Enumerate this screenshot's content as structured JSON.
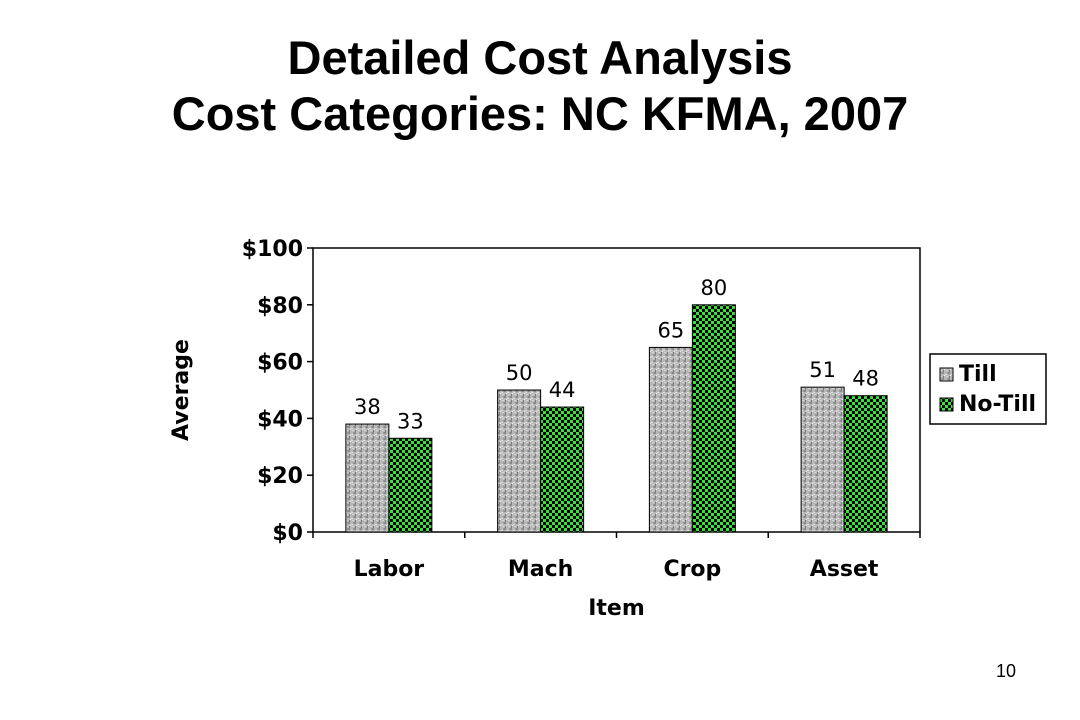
{
  "slide": {
    "title_line1": "Detailed Cost Analysis",
    "title_line2": "Cost Categories: NC KFMA, 2007",
    "page_number": "10"
  },
  "chart_data": {
    "type": "bar",
    "categories": [
      "Labor",
      "Mach",
      "Crop",
      "Asset"
    ],
    "series": [
      {
        "name": "Till",
        "values": [
          38,
          50,
          65,
          51
        ],
        "data_labels": [
          "38",
          "50",
          "65",
          "51"
        ],
        "color": "#b4b4b4"
      },
      {
        "name": "No-Till",
        "values": [
          33,
          44,
          80,
          48
        ],
        "data_labels": [
          "33",
          "44",
          "80",
          "48"
        ],
        "color": "#2fd92f"
      }
    ],
    "title": "",
    "xlabel": "Item",
    "ylabel": "Average",
    "ylim": [
      0,
      100
    ],
    "yticks": [
      0,
      20,
      40,
      60,
      80,
      100
    ],
    "ytick_labels": [
      "$0",
      "$20",
      "$40",
      "$60",
      "$80",
      "$100"
    ],
    "grid": false,
    "legend": {
      "position": "right",
      "entries": [
        "Till",
        "No-Till"
      ]
    }
  }
}
